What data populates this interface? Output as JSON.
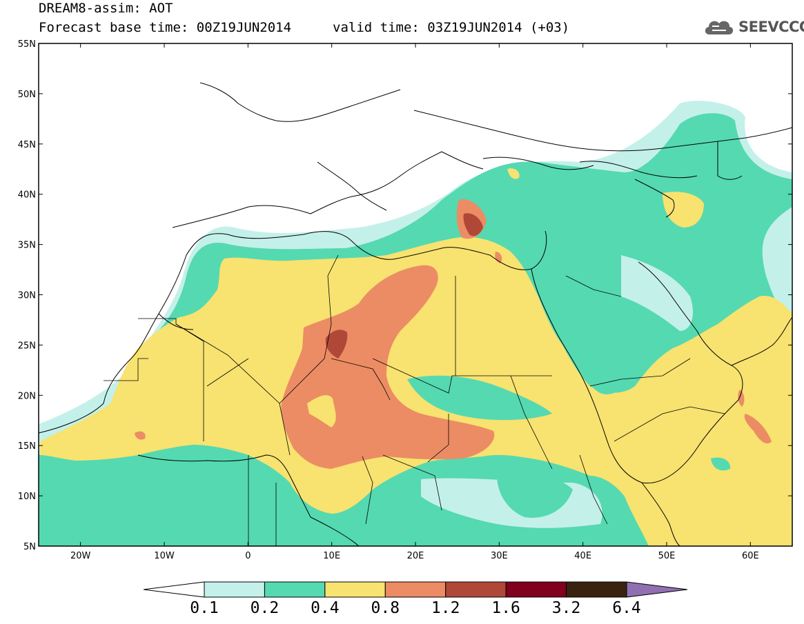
{
  "header": {
    "line1": "DREAM8-assim: AOT",
    "base_time": "Forecast base time: 00Z19JUN2014",
    "valid_time": "valid time: 03Z19JUN2014 (+03)"
  },
  "logo": {
    "icon": "cloud-icon",
    "text": "SEEVCCC"
  },
  "map": {
    "lon_range": [
      -25,
      65
    ],
    "lat_range": [
      5,
      55
    ],
    "lat_ticks": [
      "5N",
      "10N",
      "15N",
      "20N",
      "25N",
      "30N",
      "35N",
      "40N",
      "45N",
      "50N",
      "55N"
    ],
    "lon_ticks": [
      "20W",
      "10W",
      "0",
      "10E",
      "20E",
      "30E",
      "40E",
      "50E",
      "60E"
    ]
  },
  "colorbar": {
    "colors": [
      "#ffffff",
      "#c4f0ea",
      "#55d9b0",
      "#f8e270",
      "#ec8c64",
      "#b04838",
      "#80001e",
      "#3a2210",
      "#9070b0"
    ],
    "labels": [
      "0.1",
      "0.2",
      "0.4",
      "0.8",
      "1.2",
      "1.6",
      "3.2",
      "6.4"
    ]
  }
}
